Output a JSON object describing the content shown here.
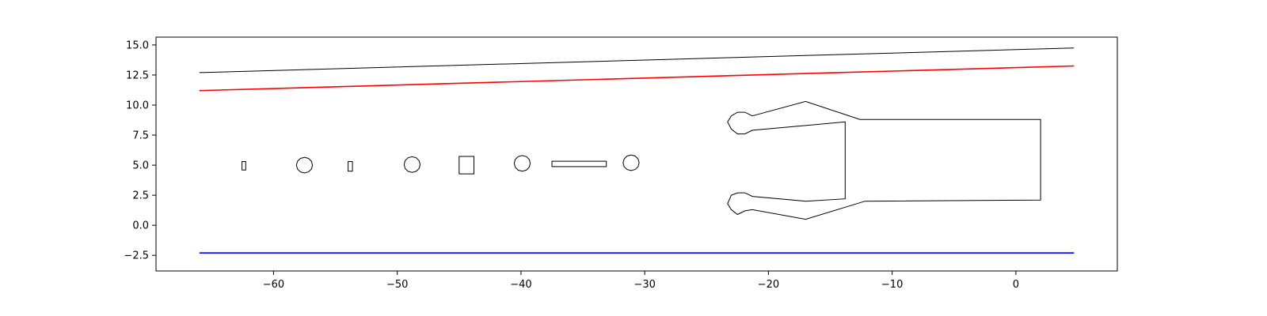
{
  "chart_data": {
    "type": "line",
    "title": "",
    "xlabel": "",
    "ylabel": "",
    "xlim": [
      -69.5,
      8.2
    ],
    "ylim": [
      -3.8,
      15.65
    ],
    "grid": false,
    "legend": "none",
    "x_ticks": [
      -60,
      -50,
      -40,
      -30,
      -20,
      -10,
      0
    ],
    "y_ticks": [
      -2.5,
      0.0,
      2.5,
      5.0,
      7.5,
      10.0,
      12.5,
      15.0
    ],
    "x_tick_labels": [
      "−60",
      "−50",
      "−40",
      "−30",
      "−20",
      "−10",
      "0"
    ],
    "y_tick_labels": [
      "−2.5",
      "0.0",
      "2.5",
      "5.0",
      "7.5",
      "10.0",
      "12.5",
      "15.0"
    ],
    "colors": {
      "black": "#000000",
      "red": "#ff0000",
      "blue": "#0000ff"
    },
    "lines": [
      {
        "color": "#000000",
        "width": 1,
        "points": [
          [
            -66,
            12.7
          ],
          [
            4.7,
            14.75
          ]
        ]
      },
      {
        "color": "#ff0000",
        "width": 1.6,
        "points": [
          [
            -66,
            11.2
          ],
          [
            4.7,
            13.25
          ]
        ]
      },
      {
        "color": "#0000ff",
        "width": 1.6,
        "points": [
          [
            -66,
            -2.3
          ],
          [
            4.7,
            -2.3
          ]
        ]
      },
      {
        "color": "#000000",
        "width": 1,
        "points": [
          [
            -66,
            -3.8
          ],
          [
            4.7,
            -3.8
          ]
        ]
      }
    ],
    "obstacles": [
      {
        "shape": "rect",
        "cx": -62.4,
        "cy": 4.95,
        "w": 0.3,
        "h": 0.7
      },
      {
        "shape": "circle",
        "cx": -57.5,
        "cy": 5.0,
        "r": 0.65
      },
      {
        "shape": "rect",
        "cx": -53.8,
        "cy": 4.9,
        "w": 0.35,
        "h": 0.8
      },
      {
        "shape": "circle",
        "cx": -48.8,
        "cy": 5.05,
        "r": 0.65
      },
      {
        "shape": "rect",
        "cx": -44.4,
        "cy": 5.0,
        "w": 1.2,
        "h": 1.45
      },
      {
        "shape": "circle",
        "cx": -39.9,
        "cy": 5.15,
        "r": 0.65
      },
      {
        "shape": "rect",
        "cx": -35.3,
        "cy": 5.1,
        "w": 4.4,
        "h": 0.45
      },
      {
        "shape": "circle",
        "cx": -31.1,
        "cy": 5.2,
        "r": 0.65
      }
    ],
    "vehicle": [
      [
        -21.3,
        9.1
      ],
      [
        -17.0,
        10.3
      ],
      [
        -12.6,
        8.8
      ],
      [
        2.0,
        8.8
      ],
      [
        2.0,
        2.1
      ],
      [
        -12.2,
        2.0
      ],
      [
        -17.0,
        0.5
      ],
      [
        -21.3,
        1.3
      ],
      [
        -21.9,
        1.2
      ],
      [
        -22.5,
        0.9
      ],
      [
        -23.0,
        1.3
      ],
      [
        -23.3,
        1.8
      ],
      [
        -23.0,
        2.5
      ],
      [
        -22.5,
        2.7
      ],
      [
        -21.9,
        2.7
      ],
      [
        -21.3,
        2.4
      ],
      [
        -17.0,
        2.0
      ],
      [
        -13.8,
        2.2
      ],
      [
        -13.8,
        8.6
      ],
      [
        -21.3,
        7.9
      ],
      [
        -21.9,
        7.6
      ],
      [
        -22.5,
        7.6
      ],
      [
        -23.0,
        8.0
      ],
      [
        -23.3,
        8.6
      ],
      [
        -23.0,
        9.1
      ],
      [
        -22.5,
        9.4
      ],
      [
        -21.9,
        9.4
      ]
    ]
  }
}
